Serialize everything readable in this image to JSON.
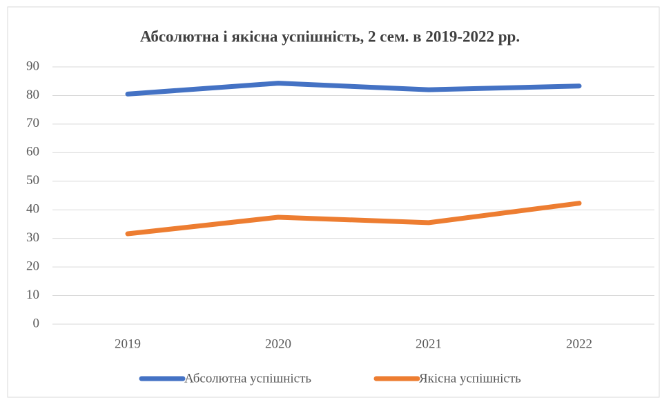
{
  "chart_data": {
    "type": "line",
    "title": "Абсолютна і якісна успішність, 2 сем. в 2019-2022 рр.",
    "categories": [
      "2019",
      "2020",
      "2021",
      "2022"
    ],
    "series": [
      {
        "name": "Абсолютна успішність",
        "color": "#4472c4",
        "values": [
          80.5,
          84.3,
          82,
          83.3
        ]
      },
      {
        "name": "Якісна успішність",
        "color": "#ed7d31",
        "values": [
          31.6,
          37.4,
          35.5,
          42.3
        ]
      }
    ],
    "ylim": [
      0,
      90
    ],
    "yticks": [
      0,
      10,
      20,
      30,
      40,
      50,
      60,
      70,
      80,
      90
    ],
    "grid": true,
    "legend": "bottom"
  }
}
